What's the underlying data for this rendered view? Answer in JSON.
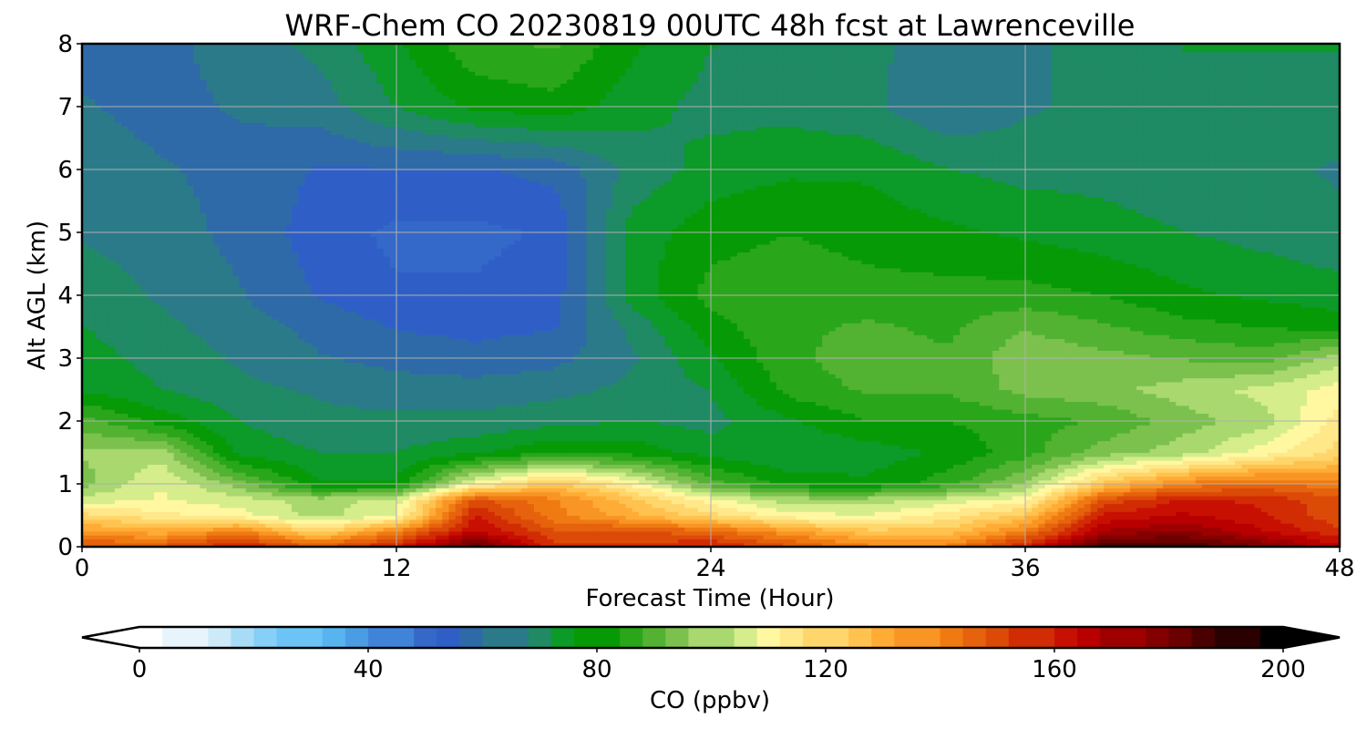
{
  "chart_data": {
    "type": "heatmap",
    "title": "WRF-Chem CO  20230819 00UTC 48h fcst at Lawrenceville",
    "xlabel": "Forecast Time (Hour)",
    "ylabel": "Alt AGL (km)",
    "xlim": [
      0,
      48
    ],
    "ylim": [
      0,
      8
    ],
    "xticks": [
      0,
      12,
      24,
      36,
      48
    ],
    "xtick_labels": [
      "0",
      "12",
      "24",
      "36",
      "48"
    ],
    "yticks": [
      0,
      1,
      2,
      3,
      4,
      5,
      6,
      7,
      8
    ],
    "ytick_labels": [
      "0",
      "1",
      "2",
      "3",
      "4",
      "5",
      "6",
      "7",
      "8"
    ],
    "grid": true,
    "x_hours": [
      0,
      3,
      6,
      9,
      12,
      15,
      18,
      21,
      24,
      27,
      30,
      33,
      36,
      39,
      42,
      45,
      48
    ],
    "y_km": [
      0,
      0.25,
      0.5,
      0.75,
      1,
      1.5,
      2,
      2.5,
      3,
      3.5,
      4,
      5,
      6,
      7,
      8
    ],
    "z_ppbv": [
      [
        150,
        150,
        160,
        150,
        160,
        185,
        155,
        155,
        160,
        150,
        140,
        140,
        160,
        190,
        190,
        180,
        165
      ],
      [
        135,
        130,
        140,
        120,
        140,
        165,
        150,
        150,
        145,
        135,
        125,
        125,
        140,
        170,
        175,
        165,
        155
      ],
      [
        120,
        115,
        110,
        100,
        108,
        160,
        140,
        130,
        120,
        110,
        108,
        115,
        125,
        160,
        165,
        160,
        150
      ],
      [
        105,
        108,
        105,
        100,
        105,
        150,
        140,
        125,
        110,
        100,
        100,
        105,
        110,
        150,
        160,
        158,
        150
      ],
      [
        95,
        108,
        95,
        78,
        78,
        110,
        125,
        112,
        90,
        80,
        78,
        85,
        98,
        125,
        140,
        145,
        140
      ],
      [
        98,
        100,
        75,
        72,
        72,
        76,
        82,
        80,
        75,
        72,
        74,
        78,
        85,
        95,
        100,
        110,
        120
      ],
      [
        90,
        80,
        72,
        68,
        68,
        68,
        70,
        72,
        70,
        76,
        82,
        82,
        85,
        88,
        95,
        100,
        115
      ],
      [
        76,
        72,
        68,
        66,
        64,
        64,
        65,
        68,
        72,
        84,
        88,
        88,
        94,
        96,
        100,
        104,
        110
      ],
      [
        74,
        70,
        66,
        62,
        60,
        58,
        60,
        66,
        76,
        86,
        90,
        88,
        96,
        94,
        92,
        90,
        100
      ],
      [
        72,
        68,
        64,
        60,
        56,
        55,
        56,
        68,
        80,
        86,
        88,
        86,
        92,
        88,
        84,
        82,
        80
      ],
      [
        70,
        66,
        62,
        56,
        52,
        52,
        54,
        74,
        84,
        86,
        84,
        84,
        84,
        82,
        78,
        76,
        74
      ],
      [
        66,
        64,
        60,
        54,
        50,
        50,
        52,
        74,
        80,
        82,
        80,
        78,
        76,
        74,
        72,
        70,
        68
      ],
      [
        64,
        62,
        60,
        56,
        56,
        56,
        58,
        68,
        74,
        76,
        76,
        72,
        70,
        70,
        68,
        68,
        66
      ],
      [
        62,
        60,
        62,
        64,
        72,
        78,
        80,
        74,
        70,
        70,
        68,
        62,
        66,
        68,
        70,
        70,
        70
      ],
      [
        60,
        60,
        64,
        68,
        76,
        86,
        88,
        78,
        72,
        70,
        68,
        64,
        66,
        68,
        72,
        72,
        72
      ]
    ],
    "colorbar": {
      "label": "CO  (ppbv)",
      "min": 0,
      "max": 200,
      "ticks": [
        0,
        40,
        80,
        120,
        160,
        200
      ],
      "tick_labels": [
        "0",
        "40",
        "80",
        "120",
        "160",
        "200"
      ],
      "extend": "both",
      "levels": 50,
      "colors": [
        "#ffffff",
        "#e8f4fb",
        "#cdeaf8",
        "#a8dcf6",
        "#86cff7",
        "#6cc4f6",
        "#58b4ee",
        "#4b9de3",
        "#3f84d8",
        "#3468c9",
        "#2f5fc6",
        "#2e6aa8",
        "#2b7a8a",
        "#1f8a64",
        "#0c9a28",
        "#069a06",
        "#2aa61a",
        "#53b232",
        "#7cc14e",
        "#a8d86f",
        "#d6ed8c",
        "#fff8a0",
        "#ffe88a",
        "#ffd66c",
        "#ffc24e",
        "#ffac36",
        "#f99524",
        "#f07a12",
        "#e6620c",
        "#dc4a08",
        "#d22c04",
        "#c81002",
        "#b80000",
        "#9e0000",
        "#840000",
        "#6a0000",
        "#4a0000",
        "#2a0000",
        "#000000"
      ]
    }
  }
}
